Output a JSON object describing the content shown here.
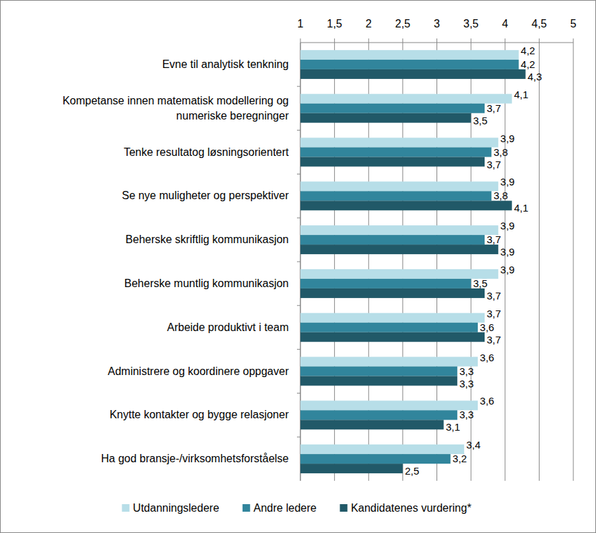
{
  "chart_data": {
    "type": "bar",
    "orientation": "horizontal",
    "grid": true,
    "data_labels": true,
    "legend": "bottom",
    "categories": [
      "Evne til analytisk tenkning",
      "Kompetanse innen matematisk modellering og numeriske beregninger",
      "Tenke resultatog løsningsorientert",
      "Se nye muligheter og perspektiver",
      "Beherske skriftlig kommunikasjon",
      "Beherske muntlig kommunikasjon",
      "Arbeide produktivt i team",
      "Administrere og koordinere oppgaver",
      "Knytte kontakter og bygge relasjoner",
      "Ha god bransje-/virksomhetsforståelse"
    ],
    "xlim": [
      1,
      5
    ],
    "xticks": [
      1,
      {
        "value": 1.5,
        "label": "1,5"
      },
      2,
      {
        "value": 2.5,
        "label": "2,5"
      },
      3,
      {
        "value": 3.5,
        "label": "3,5"
      },
      4,
      {
        "value": 4.5,
        "label": "4,5"
      },
      5
    ],
    "series": [
      {
        "name": "Utdanningsledere",
        "color": "#b7dee8",
        "values": [
          4.2,
          4.1,
          3.9,
          3.9,
          3.9,
          3.9,
          3.7,
          3.6,
          3.6,
          3.4
        ],
        "value_labels": [
          "4,2",
          "4,1",
          "3,9",
          "3,9",
          "3,9",
          "3,9",
          "3,7",
          "3,6",
          "3,6",
          "3,4"
        ]
      },
      {
        "name": "Andre ledere",
        "color": "#31859c",
        "values": [
          4.2,
          3.7,
          3.8,
          3.8,
          3.7,
          3.5,
          3.6,
          3.3,
          3.3,
          3.2
        ],
        "value_labels": [
          "4,2",
          "3,7",
          "3,8",
          "3,8",
          "3,7",
          "3,5",
          "3,6",
          "3,3",
          "3,3",
          "3,2"
        ]
      },
      {
        "name": "Kandidatenes vurdering*",
        "color": "#215968",
        "values": [
          4.3,
          3.5,
          3.7,
          4.1,
          3.9,
          3.7,
          3.7,
          3.3,
          3.1,
          2.5
        ],
        "value_labels": [
          "4,3",
          "3,5",
          "3,7",
          "4,1",
          "3,9",
          "3,7",
          "3,7",
          "3,3",
          "3,1",
          "2,5"
        ]
      }
    ]
  }
}
